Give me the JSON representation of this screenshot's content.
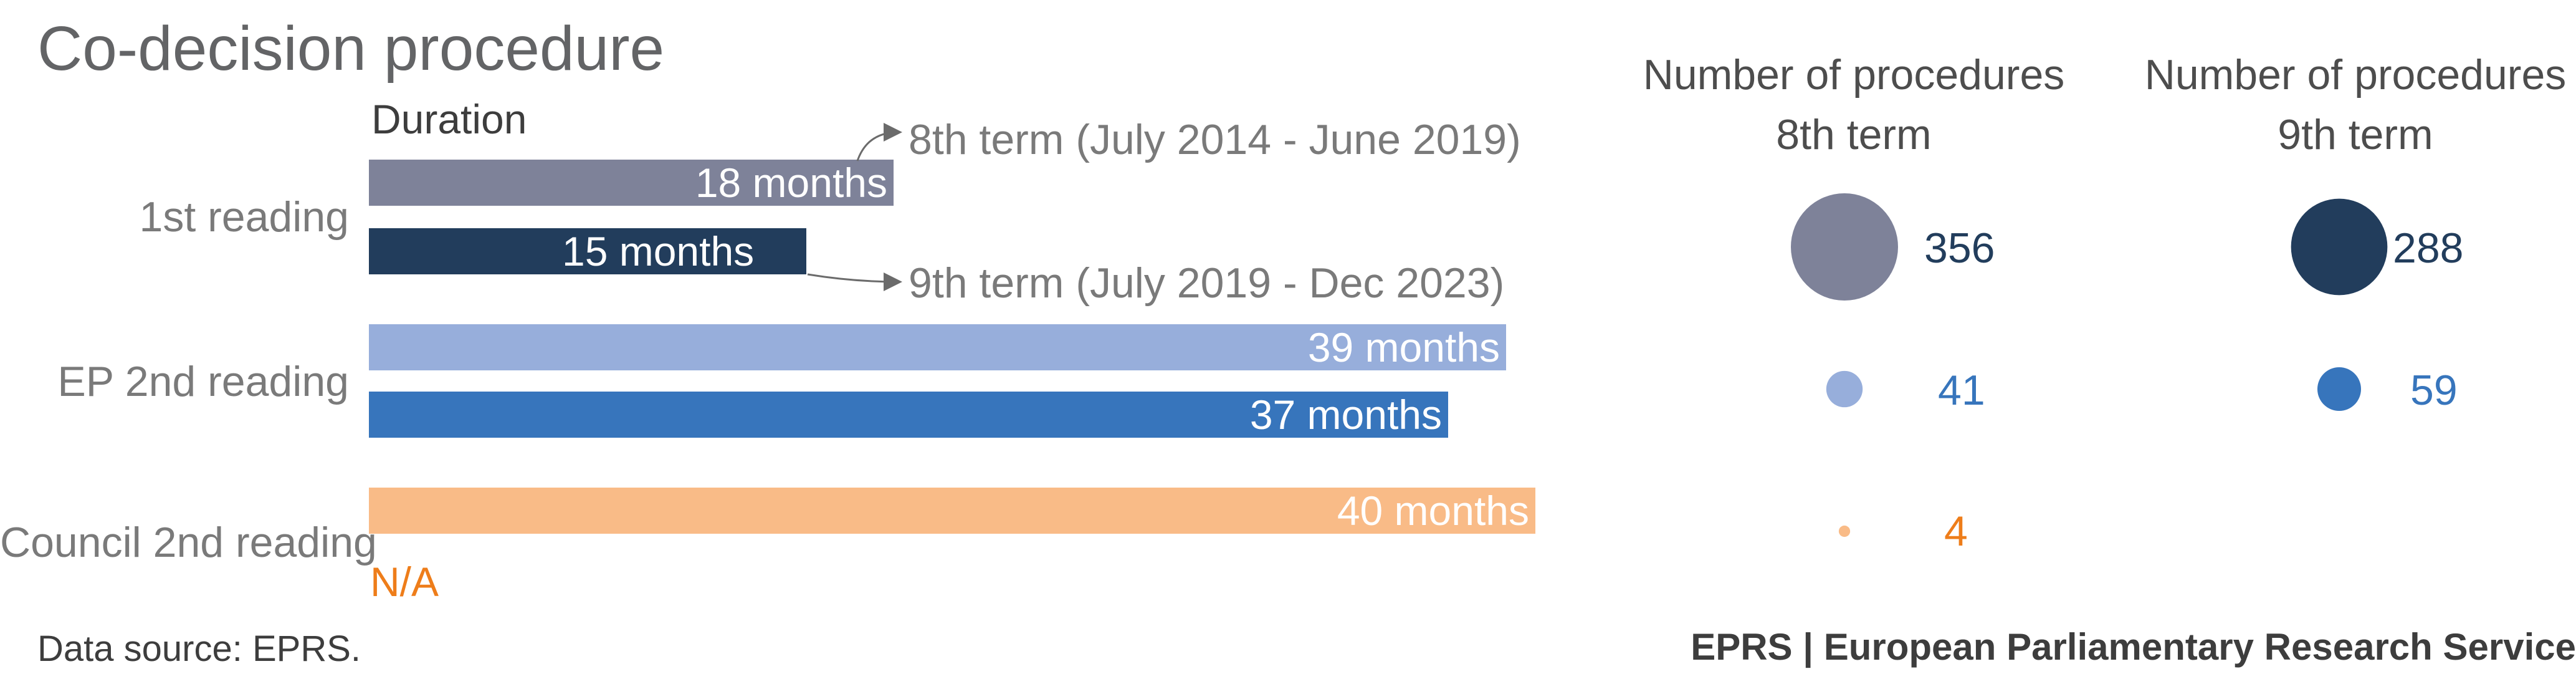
{
  "chart_data": {
    "type": "bar",
    "title": "Co-decision procedure",
    "duration_label": "Duration",
    "categories": [
      "1st reading",
      "EP 2nd reading",
      "Council 2nd reading"
    ],
    "series": [
      {
        "name": "8th term (July 2014 - June 2019)",
        "durations_months": [
          18,
          39,
          40
        ],
        "duration_labels": [
          "18 months",
          "39 months",
          "40 months"
        ],
        "procedures": [
          356,
          41,
          4
        ]
      },
      {
        "name": "9th term (July 2019 - Dec 2023)",
        "durations_months": [
          15,
          37,
          null
        ],
        "duration_labels": [
          "15 months",
          "37 months",
          "N/A"
        ],
        "procedures": [
          288,
          59,
          null
        ]
      }
    ],
    "procedure_headers": [
      {
        "line1": "Number of procedures",
        "line2": "8th term"
      },
      {
        "line1": "Number of procedures",
        "line2": "9th term"
      }
    ],
    "colors": {
      "first_8th": "#7e8299",
      "first_9th": "#223d5c",
      "ep2_8th": "#97aedb",
      "ep2_9th": "#3775bc",
      "council_8th": "#f9bb87",
      "na": "#ee7d1a",
      "count_dark": "#223d5c",
      "count_blue": "#3775bc",
      "count_orange": "#ee7d1a"
    }
  },
  "footer": {
    "source": "Data source: EPRS.",
    "credit": "EPRS | European Parliamentary Research Service"
  }
}
